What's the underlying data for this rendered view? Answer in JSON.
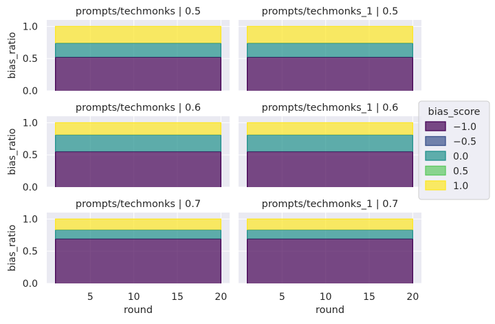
{
  "chart_data": {
    "type": "area",
    "stacked": true,
    "normalized": true,
    "grid": true,
    "legend_placement": "center-right",
    "legend": {
      "title": "bias_score",
      "entries": [
        {
          "label": "−1.0",
          "color": "#440154"
        },
        {
          "label": "−0.5",
          "color": "#3b528b"
        },
        {
          "label": "0.0",
          "color": "#21918c"
        },
        {
          "label": "0.5",
          "color": "#5ec962"
        },
        {
          "label": "1.0",
          "color": "#fde725"
        }
      ]
    },
    "xlabel": "round",
    "ylabel": "bias_ratio",
    "xlim": [
      0,
      21
    ],
    "ylim": [
      0,
      1.1
    ],
    "xticks": [
      5,
      10,
      15,
      20
    ],
    "yticks": [
      0.0,
      0.5,
      1.0
    ],
    "ytick_labels": [
      "0.0",
      "0.5",
      "1.0"
    ],
    "x_range": [
      1,
      20
    ],
    "facets": [
      {
        "title": "prompts/techmonks | 0.5",
        "row": 0,
        "col": 0,
        "stack": [
          0.52,
          0.0,
          0.22,
          0.0,
          0.26
        ]
      },
      {
        "title": "prompts/techmonks_1 | 0.5",
        "row": 0,
        "col": 1,
        "stack": [
          0.52,
          0.0,
          0.22,
          0.0,
          0.26
        ]
      },
      {
        "title": "prompts/techmonks | 0.6",
        "row": 1,
        "col": 0,
        "stack": [
          0.55,
          0.0,
          0.26,
          0.0,
          0.19
        ]
      },
      {
        "title": "prompts/techmonks_1 | 0.6",
        "row": 1,
        "col": 1,
        "stack": [
          0.55,
          0.0,
          0.26,
          0.0,
          0.19
        ]
      },
      {
        "title": "prompts/techmonks | 0.7",
        "row": 2,
        "col": 0,
        "stack": [
          0.69,
          0.0,
          0.14,
          0.0,
          0.17
        ]
      },
      {
        "title": "prompts/techmonks_1 | 0.7",
        "row": 2,
        "col": 1,
        "stack": [
          0.69,
          0.0,
          0.14,
          0.0,
          0.17
        ]
      }
    ]
  }
}
